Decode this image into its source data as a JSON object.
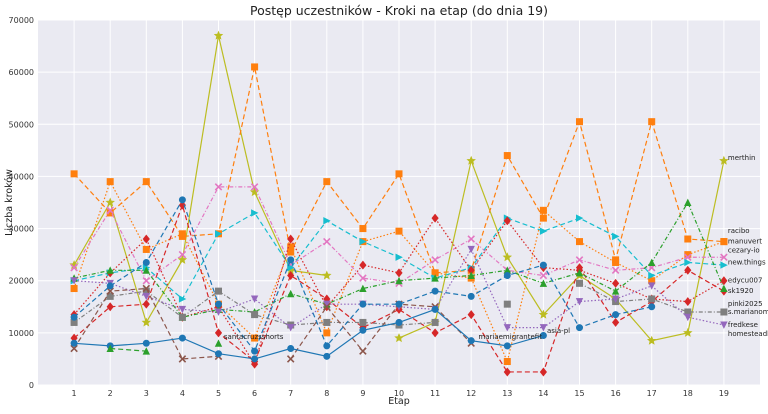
{
  "chart_data": {
    "type": "line",
    "title": "Postęp uczestników - Kroki na etap (do dnia 19)",
    "xlabel": "Etap",
    "ylabel": "Liczba kroków",
    "x": [
      1,
      2,
      3,
      4,
      5,
      6,
      7,
      8,
      9,
      10,
      11,
      12,
      13,
      14,
      15,
      16,
      17,
      18,
      19
    ],
    "xlim": [
      0,
      20
    ],
    "ylim": [
      0,
      70000
    ],
    "yticks": [
      0,
      10000,
      20000,
      30000,
      40000,
      50000,
      60000,
      70000
    ],
    "grid": true,
    "legend": "none",
    "series": [
      {
        "name": "merthin",
        "color": "#bcbd22",
        "dash": "",
        "marker": "star",
        "values": [
          23000,
          35000,
          12000,
          24000,
          67000,
          37000,
          22000,
          21000,
          null,
          9000,
          12000,
          43000,
          24500,
          13500,
          21000,
          16500,
          8500,
          10000,
          43000
        ],
        "label_y": 43500
      },
      {
        "name": "racibo",
        "color": "#ff7f0e",
        "dash": "5,3",
        "marker": "square",
        "values": [
          40500,
          33000,
          39000,
          28500,
          29000,
          61000,
          25500,
          39000,
          30000,
          40500,
          21500,
          22000,
          44000,
          32000,
          50500,
          24000,
          50500,
          28000,
          27500
        ],
        "label_y": 29500
      },
      {
        "name": "manuvert",
        "color": "#ff7f0e",
        "dash": "1.5,2",
        "marker": "square",
        "values": [
          18500,
          39000,
          26000,
          29000,
          15500,
          9000,
          26500,
          10000,
          27500,
          29500,
          21500,
          20500,
          4500,
          33500,
          27500,
          23500,
          20000,
          25000,
          27500
        ],
        "label_y": 27500
      },
      {
        "name": "cezary-io",
        "color": "#e377c2",
        "dash": "4,2,1,2",
        "marker": "x",
        "values": [
          22500,
          33500,
          20000,
          25000,
          38000,
          38000,
          23000,
          27500,
          20500,
          19500,
          24000,
          28000,
          22000,
          21000,
          24000,
          22000,
          22500,
          24500,
          24500
        ],
        "label_y": 25800
      },
      {
        "name": "new.things",
        "color": "#17becf",
        "dash": "5,3",
        "marker": "triangle-right",
        "values": [
          20000,
          21500,
          22500,
          16500,
          29000,
          33000,
          22500,
          31500,
          27500,
          24500,
          20500,
          22500,
          32000,
          29500,
          32000,
          28500,
          21000,
          23500,
          23000
        ],
        "label_y": 23500
      },
      {
        "name": "edycu007",
        "color": "#d62728",
        "dash": "1.5,2",
        "marker": "diamond",
        "values": [
          13500,
          21500,
          28000,
          13000,
          15000,
          4000,
          28000,
          15000,
          23000,
          21500,
          32000,
          22000,
          31500,
          22500,
          22000,
          19500,
          16500,
          16000,
          20000
        ],
        "label_y": 20000
      },
      {
        "name": "sk1920",
        "color": "#d62728",
        "dash": "5,3",
        "marker": "diamond",
        "values": [
          9000,
          15000,
          15500,
          34500,
          10000,
          4500,
          21000,
          16500,
          11000,
          14500,
          10000,
          13500,
          2500,
          2500,
          22500,
          12000,
          16000,
          22000,
          18000
        ],
        "label_y": 18000
      },
      {
        "name": "pinki2025",
        "color": "#2ca02c",
        "dash": "4,2,1,2",
        "marker": "triangle",
        "values": [
          20500,
          22000,
          22000,
          13000,
          14500,
          14000,
          17500,
          15500,
          18500,
          20000,
          20500,
          21000,
          22000,
          19500,
          21500,
          18000,
          23500,
          35000,
          18500
        ],
        "label_y": 15500
      },
      {
        "name": "s.marianomariano",
        "color": "#7f7f7f",
        "dash": "4,2,1,2",
        "marker": "square",
        "values": [
          12000,
          17000,
          18000,
          13000,
          18000,
          13500,
          11500,
          12000,
          12000,
          11500,
          12000,
          null,
          15500,
          null,
          19500,
          16000,
          16500,
          14000,
          14000
        ],
        "label_y": 14000
      },
      {
        "name": "fredkese",
        "color": "#9467bd",
        "dash": "1.5,2",
        "marker": "triangle-down",
        "values": [
          20000,
          19500,
          17000,
          14500,
          14000,
          16500,
          11000,
          15500,
          15500,
          15000,
          14500,
          26000,
          11000,
          11000,
          16000,
          16500,
          19000,
          13000,
          11500
        ],
        "label_y": 11500
      },
      {
        "name": "homesteadlt",
        "color": "#8c564b",
        "dash": "5,3",
        "marker": "x",
        "values": [
          7000,
          18000,
          18500,
          5000,
          5500,
          null,
          5000,
          15000,
          6500,
          15500,
          15000,
          8000,
          null,
          null,
          null,
          null,
          null,
          null,
          null
        ],
        "label_y": 9800
      },
      {
        "name": "santacruzsshorts",
        "color": "#1f77b4",
        "dash": "",
        "marker": "circle",
        "values": [
          8000,
          7500,
          8000,
          9000,
          6000,
          5000,
          7000,
          5500,
          10500,
          12000,
          14500,
          8500,
          7500,
          9500,
          null,
          null,
          null,
          null,
          null
        ],
        "label_pos": {
          "x": 5.15,
          "y": 8800
        }
      },
      {
        "name": "mariaemigrantefit",
        "color": "#1f77b4",
        "dash": "5,3",
        "marker": "circle",
        "values": [
          13000,
          19000,
          23500,
          35500,
          15500,
          6500,
          24000,
          7500,
          15500,
          15500,
          18000,
          17000,
          21000,
          23000,
          11000,
          13500,
          15000,
          null,
          null
        ],
        "label_pos": {
          "x": 12.2,
          "y": 8800
        }
      },
      {
        "name": "asia-pl",
        "color": "#2ca02c",
        "dash": "5,3",
        "marker": "triangle",
        "values": [
          null,
          7000,
          6500,
          null,
          8000,
          null,
          null,
          null,
          null,
          null,
          null,
          null,
          null,
          null,
          null,
          null,
          null,
          null,
          null
        ],
        "label_pos": {
          "x": 14.1,
          "y": 10000
        }
      }
    ]
  }
}
